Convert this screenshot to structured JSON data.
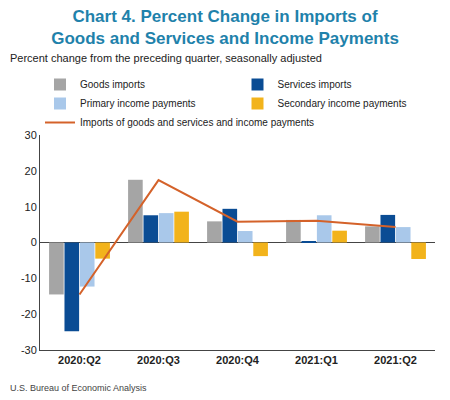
{
  "chart_data": {
    "type": "bar",
    "title": "Chart 4. Percent Change in Imports of Goods and Services and Income Payments",
    "subtitle": "Percent change from the preceding quarter, seasonally adjusted",
    "source": "U.S. Bureau of Economic Analysis",
    "categories": [
      "2020:Q2",
      "2020:Q3",
      "2020:Q4",
      "2021:Q1",
      "2021:Q2"
    ],
    "series": [
      {
        "name": "Goods imports",
        "type": "bar",
        "color": "#a5a5a5",
        "values": [
          -14.5,
          17.5,
          5.9,
          6.3,
          4.5
        ]
      },
      {
        "name": "Services imports",
        "type": "bar",
        "color": "#0a4c94",
        "values": [
          -24.8,
          7.6,
          9.4,
          0.2,
          7.7
        ]
      },
      {
        "name": "Primary income payments",
        "type": "bar",
        "color": "#a9c8ea",
        "values": [
          -12.3,
          8.2,
          3.2,
          7.6,
          4.3
        ]
      },
      {
        "name": "Secondary income payments",
        "type": "bar",
        "color": "#f2b31b",
        "values": [
          -4.5,
          8.6,
          -3.8,
          3.3,
          -4.6
        ]
      },
      {
        "name": "Imports of goods and services and income payments",
        "type": "line",
        "color": "#d4622a",
        "values": [
          -14.5,
          17.4,
          5.8,
          6.1,
          4.3
        ]
      }
    ],
    "ylim": [
      -30,
      30
    ],
    "yticks": [
      -30,
      -20,
      -10,
      0,
      10,
      20,
      30
    ],
    "grid": false,
    "legend": "top"
  }
}
